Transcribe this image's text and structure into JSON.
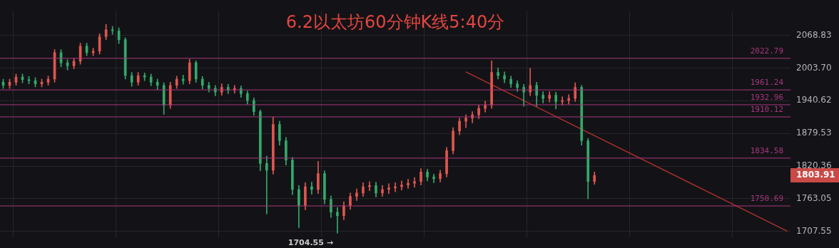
{
  "chart_data": {
    "type": "candlestick",
    "title": "6.2以太坊60分钟K线5:40分",
    "categories": [
      null,
      null,
      null,
      null,
      null,
      null,
      null,
      null,
      null,
      null,
      null,
      null,
      null,
      null,
      null,
      null,
      null,
      null,
      null,
      null,
      null,
      null,
      null,
      null,
      null,
      null,
      null,
      null,
      null,
      null,
      null,
      null,
      null,
      null,
      null,
      null,
      null,
      null,
      null,
      null,
      null,
      null,
      null,
      null,
      null,
      null,
      null,
      null,
      null,
      null,
      null,
      null,
      null,
      null,
      null,
      null,
      null,
      null,
      null,
      null,
      null,
      null,
      null,
      null,
      null,
      null,
      null,
      null,
      null,
      null,
      null,
      null,
      null,
      null,
      null,
      null,
      null,
      null,
      null,
      null,
      null,
      null,
      null,
      null,
      null,
      null,
      null,
      null,
      null,
      null,
      null,
      null,
      null,
      null,
      null,
      null,
      null,
      null,
      null,
      null,
      null,
      null,
      null,
      null,
      null,
      null,
      null,
      null,
      null,
      null,
      null,
      null,
      null,
      null,
      null,
      null,
      null,
      null,
      null,
      null,
      null,
      null,
      null
    ],
    "ohlc": [
      [
        1976,
        1982,
        1964,
        1970
      ],
      [
        1970,
        1982,
        1964,
        1976
      ],
      [
        1976,
        1992,
        1970,
        1986
      ],
      [
        1986,
        1992,
        1975,
        1981
      ],
      [
        1981,
        1987,
        1973,
        1979
      ],
      [
        1979,
        1985,
        1967,
        1973
      ],
      [
        1973,
        1982,
        1967,
        1976
      ],
      [
        1976,
        1988,
        1970,
        1982
      ],
      [
        1982,
        2040,
        1976,
        2034
      ],
      [
        2034,
        2040,
        2006,
        2014
      ],
      [
        2014,
        2020,
        2000,
        2008
      ],
      [
        2008,
        2023,
        2002,
        2017
      ],
      [
        2017,
        2053,
        2011,
        2047
      ],
      [
        2047,
        2053,
        2028,
        2034
      ],
      [
        2034,
        2043,
        2028,
        2037
      ],
      [
        2037,
        2072,
        2031,
        2066
      ],
      [
        2066,
        2091,
        2060,
        2080
      ],
      [
        2080,
        2087,
        2071,
        2078
      ],
      [
        2078,
        2084,
        2052,
        2060
      ],
      [
        2060,
        2064,
        1982,
        1989
      ],
      [
        1989,
        1995,
        1968,
        1976
      ],
      [
        1976,
        1995,
        1970,
        1989
      ],
      [
        1989,
        1994,
        1979,
        1986
      ],
      [
        1986,
        1992,
        1969,
        1976
      ],
      [
        1976,
        1982,
        1962,
        1970
      ],
      [
        1970,
        1975,
        1915,
        1932
      ],
      [
        1932,
        1976,
        1926,
        1970
      ],
      [
        1970,
        1988,
        1964,
        1982
      ],
      [
        1982,
        1990,
        1972,
        1979
      ],
      [
        1979,
        2021,
        1973,
        2014
      ],
      [
        2014,
        2018,
        1976,
        1982
      ],
      [
        1982,
        1987,
        1963,
        1970
      ],
      [
        1970,
        1976,
        1957,
        1964
      ],
      [
        1964,
        1970,
        1950,
        1957
      ],
      [
        1957,
        1973,
        1951,
        1966
      ],
      [
        1966,
        1972,
        1954,
        1961
      ],
      [
        1961,
        1970,
        1955,
        1964
      ],
      [
        1964,
        1969,
        1947,
        1954
      ],
      [
        1954,
        1959,
        1934,
        1941
      ],
      [
        1941,
        1946,
        1913,
        1920
      ],
      [
        1920,
        1923,
        1812,
        1825
      ],
      [
        1825,
        1838,
        1737,
        1813
      ],
      [
        1813,
        1910,
        1806,
        1896
      ],
      [
        1896,
        1902,
        1858,
        1866
      ],
      [
        1866,
        1872,
        1822,
        1831
      ],
      [
        1831,
        1836,
        1770,
        1779
      ],
      [
        1779,
        1786,
        1714,
        1751
      ],
      [
        1751,
        1791,
        1744,
        1784
      ],
      [
        1784,
        1792,
        1771,
        1779
      ],
      [
        1779,
        1829,
        1772,
        1807
      ],
      [
        1807,
        1812,
        1754,
        1762
      ],
      [
        1762,
        1768,
        1731,
        1740
      ],
      [
        1740,
        1748,
        1704.55,
        1734
      ],
      [
        1734,
        1758,
        1727,
        1751
      ],
      [
        1751,
        1773,
        1745,
        1767
      ],
      [
        1767,
        1780,
        1760,
        1773
      ],
      [
        1773,
        1791,
        1767,
        1784
      ],
      [
        1784,
        1793,
        1777,
        1786
      ],
      [
        1786,
        1792,
        1766,
        1773
      ],
      [
        1773,
        1786,
        1767,
        1779
      ],
      [
        1779,
        1789,
        1772,
        1782
      ],
      [
        1782,
        1791,
        1775,
        1784
      ],
      [
        1784,
        1794,
        1778,
        1787
      ],
      [
        1787,
        1797,
        1781,
        1790
      ],
      [
        1790,
        1800,
        1783,
        1793
      ],
      [
        1793,
        1816,
        1787,
        1810
      ],
      [
        1810,
        1815,
        1794,
        1801
      ],
      [
        1801,
        1806,
        1791,
        1798
      ],
      [
        1798,
        1813,
        1792,
        1807
      ],
      [
        1807,
        1854,
        1801,
        1848
      ],
      [
        1848,
        1890,
        1842,
        1884
      ],
      [
        1884,
        1908,
        1877,
        1902
      ],
      [
        1902,
        1914,
        1890,
        1908
      ],
      [
        1908,
        1920,
        1899,
        1914
      ],
      [
        1914,
        1932,
        1907,
        1926
      ],
      [
        1926,
        1940,
        1919,
        1932
      ],
      [
        1932,
        2018,
        1926,
        1995
      ],
      [
        1995,
        2004,
        1982,
        1989
      ],
      [
        1989,
        1996,
        1975,
        1982
      ],
      [
        1982,
        1988,
        1966,
        1973
      ],
      [
        1973,
        1979,
        1958,
        1966
      ],
      [
        1966,
        1972,
        1930,
        1957
      ],
      [
        1957,
        2003,
        1950,
        1970
      ],
      [
        1970,
        1976,
        1930,
        1951
      ],
      [
        1951,
        1958,
        1936,
        1945
      ],
      [
        1945,
        1958,
        1938,
        1951
      ],
      [
        1951,
        1957,
        1925,
        1939
      ],
      [
        1939,
        1948,
        1932,
        1941
      ],
      [
        1941,
        1952,
        1934,
        1945
      ],
      [
        1945,
        1975,
        1939,
        1966
      ],
      [
        1966,
        1970,
        1858,
        1866
      ],
      [
        1866,
        1870,
        1763,
        1793
      ],
      [
        1793,
        1810,
        1788,
        1803.91
      ],
      null,
      null,
      null,
      null,
      null,
      null,
      null,
      null,
      null,
      null,
      null,
      null,
      null,
      null,
      null,
      null,
      null,
      null,
      null,
      null,
      null,
      null,
      null,
      null,
      null,
      null,
      null,
      null,
      null,
      null
    ],
    "colors": [
      "#35a86a",
      "#e0564f",
      "#e0564f",
      "#35a86a",
      "#35a86a",
      "#35a86a",
      "#e0564f",
      "#e0564f",
      "#e0564f",
      "#35a86a",
      "#35a86a",
      "#e0564f",
      "#e0564f",
      "#35a86a",
      "#e0564f",
      "#e0564f",
      "#e0564f",
      "#35a86a",
      "#35a86a",
      "#35a86a",
      "#35a86a",
      "#e0564f",
      "#35a86a",
      "#35a86a",
      "#35a86a",
      "#35a86a",
      "#e0564f",
      "#e0564f",
      "#35a86a",
      "#e0564f",
      "#35a86a",
      "#35a86a",
      "#35a86a",
      "#35a86a",
      "#e0564f",
      "#35a86a",
      "#e0564f",
      "#35a86a",
      "#35a86a",
      "#35a86a",
      "#35a86a",
      "#35a86a",
      "#e0564f",
      "#35a86a",
      "#35a86a",
      "#35a86a",
      "#35a86a",
      "#e0564f",
      "#35a86a",
      "#e0564f",
      "#35a86a",
      "#35a86a",
      "#35a86a",
      "#e0564f",
      "#e0564f",
      "#e0564f",
      "#e0564f",
      "#e0564f",
      "#35a86a",
      "#e0564f",
      "#e0564f",
      "#e0564f",
      "#e0564f",
      "#e0564f",
      "#e0564f",
      "#e0564f",
      "#35a86a",
      "#35a86a",
      "#e0564f",
      "#e0564f",
      "#e0564f",
      "#e0564f",
      "#e0564f",
      "#e0564f",
      "#e0564f",
      "#e0564f",
      "#e0564f",
      "#35a86a",
      "#35a86a",
      "#35a86a",
      "#35a86a",
      "#35a86a",
      "#e0564f",
      "#35a86a",
      "#35a86a",
      "#e0564f",
      "#35a86a",
      "#e0564f",
      "#e0564f",
      "#e0564f",
      "#35a86a",
      "#35a86a",
      "#e0564f",
      null,
      null,
      null,
      null,
      null,
      null,
      null,
      null,
      null,
      null,
      null,
      null,
      null,
      null,
      null,
      null,
      null,
      null,
      null,
      null,
      null,
      null,
      null,
      null,
      null,
      null,
      null,
      null,
      null,
      null
    ],
    "series": [
      {
        "type": "line",
        "color": "#b0302c",
        "values": [
          null,
          null,
          null,
          null,
          null,
          null,
          null,
          null,
          null,
          null,
          null,
          null,
          null,
          null,
          null,
          null,
          null,
          null,
          null,
          null,
          null,
          null,
          null,
          null,
          null,
          null,
          null,
          null,
          null,
          null,
          null,
          null,
          null,
          null,
          null,
          null,
          null,
          null,
          null,
          null,
          null,
          null,
          null,
          null,
          null,
          null,
          null,
          null,
          null,
          null,
          null,
          null,
          null,
          null,
          null,
          null,
          null,
          null,
          null,
          null,
          null,
          null,
          null,
          null,
          null,
          null,
          null,
          null,
          null,
          null,
          null,
          null,
          1996,
          null,
          null,
          null,
          null,
          null,
          null,
          null,
          null,
          null,
          null,
          null,
          null,
          null,
          null,
          null,
          null,
          null,
          null,
          null,
          null,
          null,
          null,
          null,
          null,
          null,
          null,
          null,
          null,
          null,
          null,
          null,
          null,
          null,
          null,
          null,
          null,
          null,
          null,
          null,
          null,
          null,
          null,
          null,
          null,
          null,
          null,
          null,
          null,
          null,
          1708
        ]
      }
    ],
    "ylim": [
      1698,
      2119
    ],
    "yticks": [
      1707.55,
      1763.05,
      1820.36,
      1879.53,
      1940.62,
      {
        "value": 2003.7,
        "label": "2003.70"
      },
      2068.83
    ],
    "log": "y",
    "grid": true,
    "legend": false,
    "tick_labels": "y",
    "ref_lines": [
      {
        "axis": "y",
        "value": 2022.79,
        "label": "2022.79",
        "color": "#a8367c"
      },
      {
        "axis": "y",
        "value": 1961.24,
        "label": "1961.24",
        "color": "#a8367c"
      },
      {
        "axis": "y",
        "value": 1932.96,
        "label": "1932.96",
        "color": "#a8367c"
      },
      {
        "axis": "y",
        "value": 1910.12,
        "label": "1910.12",
        "color": "#a8367c"
      },
      {
        "axis": "y",
        "value": 1834.58,
        "label": "1834.58",
        "color": "#a8367c"
      },
      {
        "axis": "y",
        "value": 1750.69,
        "label": "1750.69",
        "color": "#a8367c"
      }
    ],
    "annotations": [
      "1704.55 →",
      "1803.91"
    ]
  }
}
